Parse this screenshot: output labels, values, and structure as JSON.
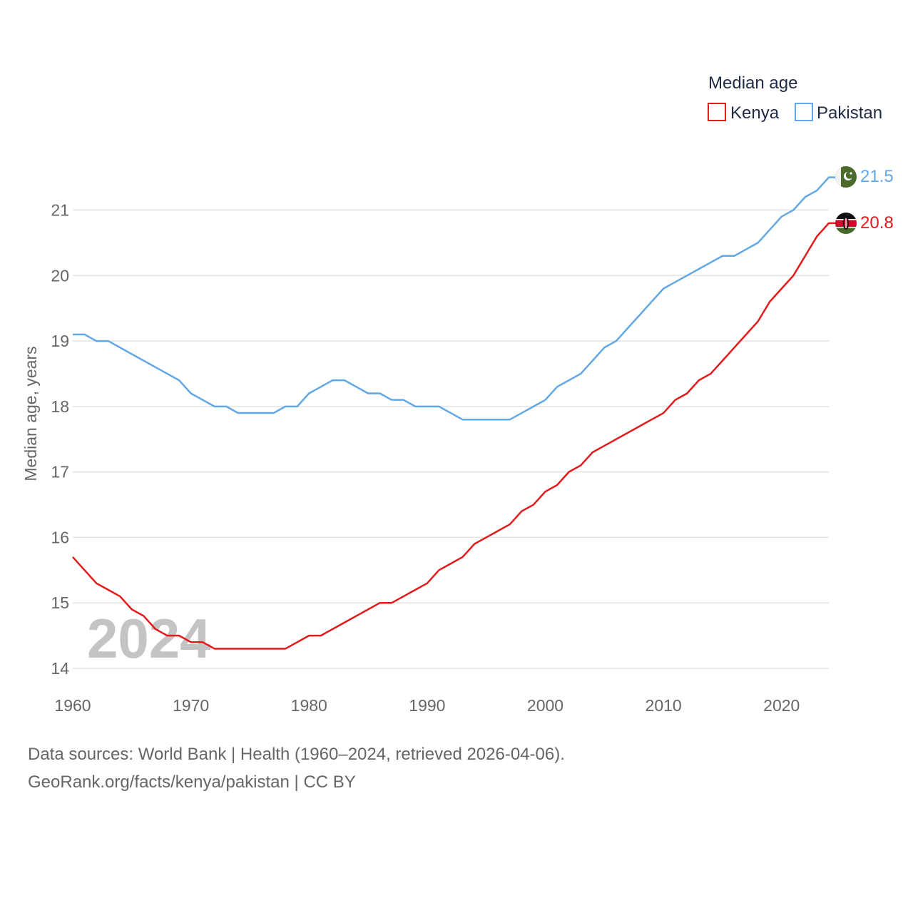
{
  "chart_data": {
    "type": "line",
    "legend_title": "Median age",
    "ylabel": "Median age, years",
    "xlabel": "",
    "year_label": "2024",
    "xlim": [
      1960,
      2024
    ],
    "ylim": [
      14,
      21.5
    ],
    "x_ticks": [
      "1960",
      "1970",
      "1980",
      "1990",
      "2000",
      "2010",
      "2020"
    ],
    "y_ticks": [
      "14",
      "15",
      "16",
      "17",
      "18",
      "19",
      "20",
      "21"
    ],
    "x": [
      1960,
      1961,
      1962,
      1963,
      1964,
      1965,
      1966,
      1967,
      1968,
      1969,
      1970,
      1971,
      1972,
      1973,
      1974,
      1975,
      1976,
      1977,
      1978,
      1979,
      1980,
      1981,
      1982,
      1983,
      1984,
      1985,
      1986,
      1987,
      1988,
      1989,
      1990,
      1991,
      1992,
      1993,
      1994,
      1995,
      1996,
      1997,
      1998,
      1999,
      2000,
      2001,
      2002,
      2003,
      2004,
      2005,
      2006,
      2007,
      2008,
      2009,
      2010,
      2011,
      2012,
      2013,
      2014,
      2015,
      2016,
      2017,
      2018,
      2019,
      2020,
      2021,
      2022,
      2023,
      2024
    ],
    "series": [
      {
        "name": "Kenya",
        "color": "#e31a1c",
        "end_label": "20.8",
        "flag_icon": "kenya-flag-icon",
        "values": [
          15.7,
          15.5,
          15.3,
          15.2,
          15.1,
          14.9,
          14.8,
          14.6,
          14.5,
          14.5,
          14.4,
          14.4,
          14.3,
          14.3,
          14.3,
          14.3,
          14.3,
          14.3,
          14.3,
          14.4,
          14.5,
          14.5,
          14.6,
          14.7,
          14.8,
          14.9,
          15.0,
          15.0,
          15.1,
          15.2,
          15.3,
          15.5,
          15.6,
          15.7,
          15.9,
          16.0,
          16.1,
          16.2,
          16.4,
          16.5,
          16.7,
          16.8,
          17.0,
          17.1,
          17.3,
          17.4,
          17.5,
          17.6,
          17.7,
          17.8,
          17.9,
          18.1,
          18.2,
          18.4,
          18.5,
          18.7,
          18.9,
          19.1,
          19.3,
          19.6,
          19.8,
          20.0,
          20.3,
          20.6,
          20.8
        ]
      },
      {
        "name": "Pakistan",
        "color": "#62a8e5",
        "end_label": "21.5",
        "flag_icon": "pakistan-flag-icon",
        "values": [
          19.1,
          19.1,
          19.0,
          19.0,
          18.9,
          18.8,
          18.7,
          18.6,
          18.5,
          18.4,
          18.2,
          18.1,
          18.0,
          18.0,
          17.9,
          17.9,
          17.9,
          17.9,
          18.0,
          18.0,
          18.2,
          18.3,
          18.4,
          18.4,
          18.3,
          18.2,
          18.2,
          18.1,
          18.1,
          18.0,
          18.0,
          18.0,
          17.9,
          17.8,
          17.8,
          17.8,
          17.8,
          17.8,
          17.9,
          18.0,
          18.1,
          18.3,
          18.4,
          18.5,
          18.7,
          18.9,
          19.0,
          19.2,
          19.4,
          19.6,
          19.8,
          19.9,
          20.0,
          20.1,
          20.2,
          20.3,
          20.3,
          20.4,
          20.5,
          20.7,
          20.9,
          21.0,
          21.2,
          21.3,
          21.5
        ]
      }
    ]
  },
  "sources": {
    "line1": "Data sources: World Bank | Health (1960–2024, retrieved 2026-04-06).",
    "line2": "GeoRank.org/facts/kenya/pakistan | CC BY"
  }
}
